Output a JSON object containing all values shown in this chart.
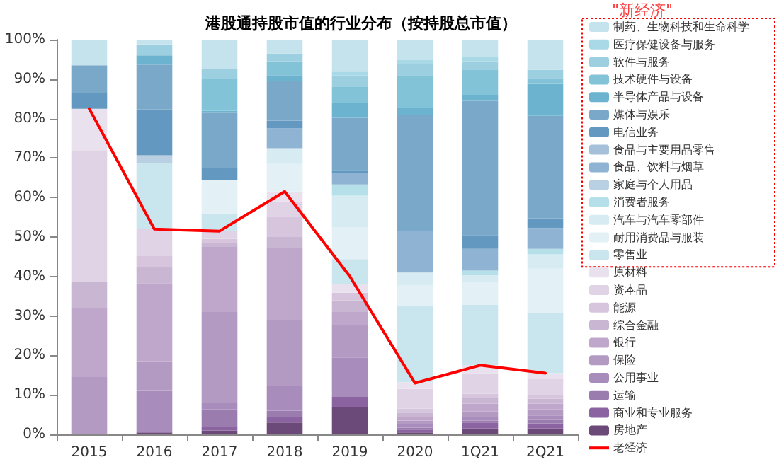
{
  "chart_data": {
    "type": "bar",
    "stacked": true,
    "title": "港股通持股市值的行业分布（按持股总市值）",
    "annotations": [
      "\"新经济\""
    ],
    "categories": [
      "2015",
      "2016",
      "2017",
      "2018",
      "2019",
      "2020",
      "1Q21",
      "2Q21"
    ],
    "series": [
      {
        "name": "房地产",
        "color": "#6b4a7a",
        "values": [
          0,
          0.005,
          0.01,
          0.03,
          0.07,
          0.005,
          0.015,
          0.015
        ]
      },
      {
        "name": "商业和专业服务",
        "color": "#8a63a0",
        "values": [
          0,
          0,
          0.008,
          0.015,
          0.025,
          0.007,
          0.015,
          0.013
        ]
      },
      {
        "name": "运输",
        "color": "#9a7caf",
        "values": [
          0,
          0,
          0.045,
          0.015,
          0,
          0.005,
          0.005,
          0.01
        ]
      },
      {
        "name": "公用事业",
        "color": "#a88cbb",
        "values": [
          0,
          0.107,
          0.017,
          0.063,
          0.1,
          0.008,
          0.008,
          0.01
        ]
      },
      {
        "name": "保险",
        "color": "#b39ac3",
        "values": [
          0.145,
          0.073,
          0.23,
          0.167,
          0.083,
          0.01,
          0.015,
          0.015
        ]
      },
      {
        "name": "银行",
        "color": "#bfa7cb",
        "values": [
          0.175,
          0.198,
          0.165,
          0.183,
          0.032,
          0.008,
          0.02,
          0.015
        ]
      },
      {
        "name": "综合金融",
        "color": "#c9b6d2",
        "values": [
          0.067,
          0.04,
          0.01,
          0.027,
          0.029,
          0.012,
          0.015,
          0.012
        ]
      },
      {
        "name": "能源",
        "color": "#d6c5dd",
        "values": [
          0,
          0.03,
          0.01,
          0.05,
          0.02,
          0.01,
          0.01,
          0.01
        ]
      },
      {
        "name": "资本品",
        "color": "#e0d3e5",
        "values": [
          0.333,
          0.067,
          0.02,
          0.04,
          0,
          0.05,
          0.052,
          0.04
        ]
      },
      {
        "name": "原材料",
        "color": "#e9e1ee",
        "values": [
          0.105,
          0,
          0,
          0.025,
          0.021,
          0.017,
          0.02,
          0.015
        ]
      },
      {
        "name": "零售业",
        "color": "#c9e5ee",
        "values": [
          0,
          0.168,
          0.045,
          0,
          0.064,
          0.193,
          0.153,
          0.153
        ]
      },
      {
        "name": "耐用消费品与服装",
        "color": "#e3f1f6",
        "values": [
          0,
          0,
          0.085,
          0.07,
          0.081,
          0.053,
          0.059,
          0.112
        ]
      },
      {
        "name": "汽车与汽车零部件",
        "color": "#d6ecf2",
        "values": [
          0,
          0,
          0,
          0.04,
          0.08,
          0.032,
          0.016,
          0.036
        ]
      },
      {
        "name": "消费者服务",
        "color": "#b5e0ea",
        "values": [
          0,
          0,
          0,
          0,
          0.028,
          0,
          0.012,
          0.014
        ]
      },
      {
        "name": "家庭与个人用品",
        "color": "#b9cfe2",
        "values": [
          0,
          0.019,
          0,
          0,
          0,
          0,
          0,
          0
        ]
      },
      {
        "name": "食品、饮料与烟草",
        "color": "#8fb4d3",
        "values": [
          0,
          0,
          0,
          0.05,
          0.03,
          0.105,
          0.055,
          0.053
        ]
      },
      {
        "name": "食品与主要用品零售",
        "color": "#a6c0da",
        "values": [
          0,
          0,
          0,
          0,
          0,
          0,
          0,
          0
        ]
      },
      {
        "name": "电信业务",
        "color": "#6398c0",
        "values": [
          0.04,
          0.116,
          0.03,
          0.02,
          0.005,
          0,
          0.035,
          0.024
        ]
      },
      {
        "name": "媒体与娱乐",
        "color": "#7aa8c9",
        "values": [
          0.07,
          0.114,
          0.14,
          0.1,
          0.134,
          0.295,
          0.34,
          0.26
        ]
      },
      {
        "name": "半导体产品与设备",
        "color": "#6bb3cf",
        "values": [
          0,
          0.023,
          0.005,
          0.015,
          0.038,
          0.017,
          0.015,
          0.081
        ]
      },
      {
        "name": "技术硬件与设备",
        "color": "#82c3d8",
        "values": [
          0,
          0,
          0.08,
          0.035,
          0.04,
          0.083,
          0.063,
          0.015
        ]
      },
      {
        "name": "软件与服务",
        "color": "#9ccfe0",
        "values": [
          0,
          0.028,
          0.025,
          0.02,
          0.029,
          0.028,
          0.022,
          0.021
        ]
      },
      {
        "name": "医疗保健设备与服务",
        "color": "#a9d8e6",
        "values": [
          0,
          0,
          0,
          0,
          0.01,
          0.01,
          0.01,
          0
        ]
      },
      {
        "name": "制药、生物科技和生命科学",
        "color": "#c5e3ec",
        "values": [
          0.065,
          0.012,
          0.075,
          0.035,
          0.081,
          0.052,
          0.045,
          0.076
        ]
      },
      {
        "name": "老经济",
        "type": "line",
        "color": "#ff0000",
        "values": [
          0.825,
          0.52,
          0.515,
          0.615,
          0.4,
          0.13,
          0.175,
          0.155
        ]
      }
    ],
    "ylim": [
      0,
      1
    ],
    "yticks": [
      {
        "value": 0,
        "label": "0%"
      },
      {
        "value": 0.1,
        "label": "10%"
      },
      {
        "value": 0.2,
        "label": "20%"
      },
      {
        "value": 0.3,
        "label": "30%"
      },
      {
        "value": 0.4,
        "label": "40%"
      },
      {
        "value": 0.5,
        "label": "50%"
      },
      {
        "value": 0.6,
        "label": "60%"
      },
      {
        "value": 0.7,
        "label": "70%"
      },
      {
        "value": 0.8,
        "label": "80%"
      },
      {
        "value": 0.9,
        "label": "90%"
      },
      {
        "value": 1,
        "label": "100%"
      }
    ],
    "grid": false,
    "legend": "right",
    "marker": "none",
    "line_style": "solid"
  }
}
